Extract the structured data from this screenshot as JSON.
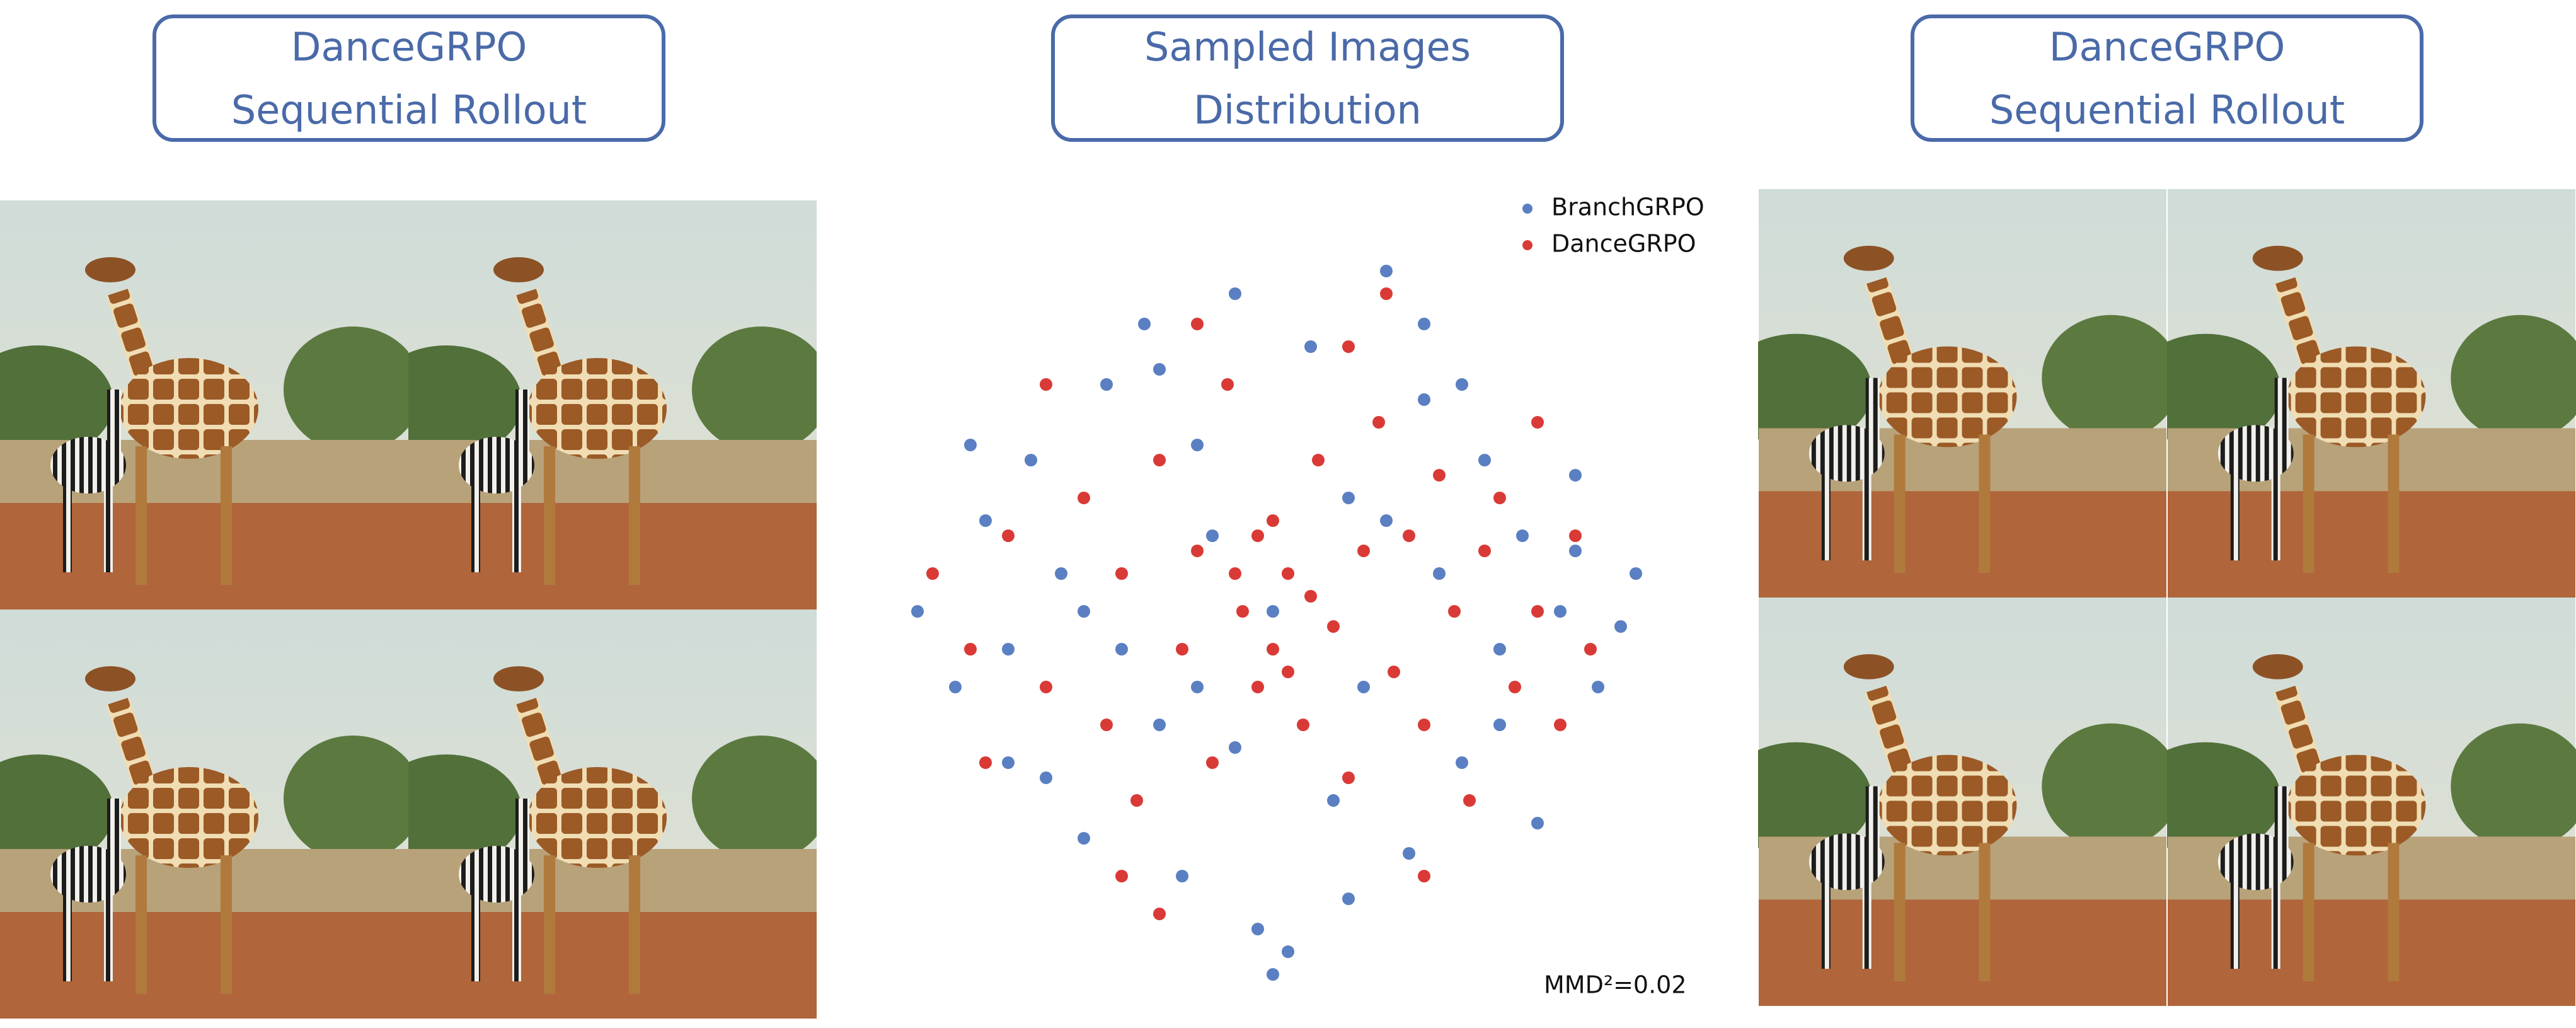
{
  "headers": [
    {
      "lines": [
        "DanceGRPO",
        "Sequential Rollout"
      ]
    },
    {
      "lines": [
        "Sampled Images",
        "Distribution"
      ]
    },
    {
      "lines": [
        "DanceGRPO",
        "Sequential Rollout"
      ]
    }
  ],
  "chart_data": {
    "type": "scatter",
    "annotation": "MMD²=0.02",
    "xlim": [
      0,
      100
    ],
    "ylim": [
      0,
      100
    ],
    "legend": "upper right",
    "series": [
      {
        "name": "BranchGRPO",
        "color": "#5a7fc2",
        "x": [
          3,
          8,
          12,
          15,
          18,
          22,
          25,
          28,
          30,
          33,
          35,
          38,
          40,
          42,
          45,
          48,
          50,
          52,
          55,
          58,
          60,
          62,
          65,
          68,
          70,
          72,
          75,
          78,
          80,
          83,
          85,
          88,
          90,
          93,
          96,
          98,
          10,
          20,
          40,
          60,
          70,
          80,
          90,
          15,
          25,
          35,
          45,
          65,
          75,
          50
        ],
        "values": [
          50,
          40,
          62,
          30,
          70,
          55,
          20,
          80,
          45,
          88,
          35,
          15,
          72,
          60,
          92,
          8,
          50,
          5,
          85,
          25,
          65,
          40,
          95,
          18,
          78,
          55,
          30,
          70,
          45,
          60,
          22,
          50,
          68,
          40,
          48,
          55,
          72,
          28,
          40,
          12,
          88,
          35,
          58,
          45,
          50,
          82,
          32,
          62,
          80,
          2
        ]
      },
      {
        "name": "DanceGRPO",
        "color": "#d93a36",
        "x": [
          5,
          10,
          15,
          20,
          25,
          28,
          30,
          32,
          35,
          38,
          40,
          42,
          44,
          46,
          48,
          50,
          50,
          52,
          54,
          56,
          58,
          60,
          62,
          64,
          66,
          68,
          70,
          72,
          74,
          76,
          78,
          80,
          82,
          85,
          88,
          90,
          45,
          55,
          48,
          52,
          30,
          40,
          60,
          70,
          20,
          85,
          12,
          35,
          65,
          92
        ],
        "values": [
          55,
          45,
          60,
          40,
          65,
          35,
          55,
          25,
          70,
          45,
          58,
          30,
          80,
          50,
          40,
          62,
          45,
          55,
          35,
          70,
          48,
          28,
          58,
          75,
          42,
          60,
          35,
          68,
          50,
          25,
          58,
          65,
          40,
          50,
          35,
          60,
          55,
          52,
          60,
          42,
          15,
          88,
          85,
          15,
          80,
          75,
          30,
          10,
          92,
          45
        ]
      }
    ]
  }
}
